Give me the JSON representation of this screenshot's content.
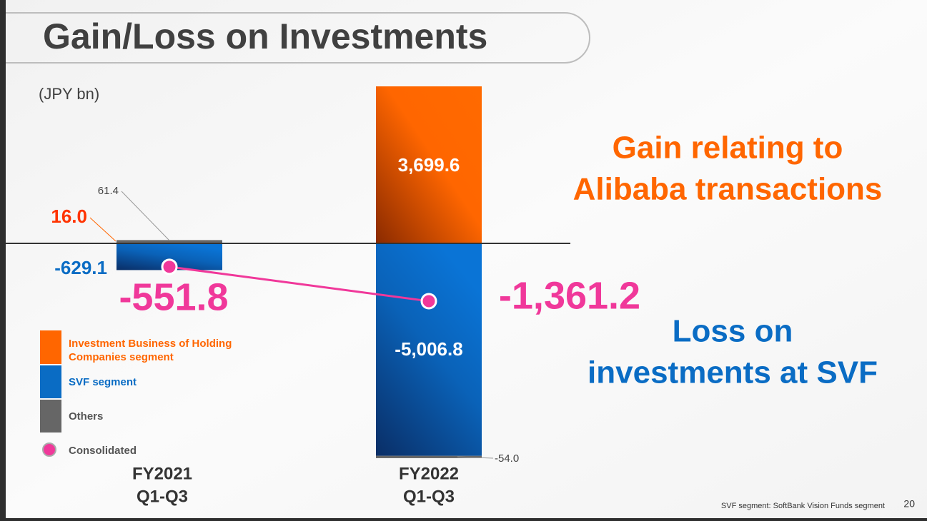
{
  "title": "Gain/Loss on Investments",
  "footnote": "SVF segment: SoftBank Vision Funds segment",
  "page_number": "20",
  "chart_data": {
    "type": "bar",
    "stacked": true,
    "unit_label": "(JPY bn)",
    "categories": [
      [
        "FY2021",
        "Q1-Q3"
      ],
      [
        "FY2022",
        "Q1-Q3"
      ]
    ],
    "series": [
      {
        "name": "Investment Business of Holding Companies segment",
        "color": "#ff6600",
        "values": [
          16.0,
          3699.6
        ],
        "value_labels": [
          "16.0",
          "3,699.6"
        ]
      },
      {
        "name": "SVF segment",
        "color": "#0a6cc4",
        "values": [
          -629.1,
          -5006.8
        ],
        "value_labels": [
          "-629.1",
          "-5,006.8"
        ]
      },
      {
        "name": "Others",
        "color": "#666666",
        "values": [
          61.4,
          -54.0
        ],
        "value_labels": [
          "61.4",
          "-54.0"
        ]
      },
      {
        "name": "Consolidated",
        "type": "line",
        "color": "#f0389a",
        "values": [
          -551.8,
          -1361.2
        ],
        "value_labels": [
          "-551.8",
          "-1,361.2"
        ]
      }
    ],
    "annotations": [
      {
        "lines": [
          "Gain relating to",
          "Alibaba transactions"
        ],
        "color": "#ff6600"
      },
      {
        "lines": [
          "Loss on",
          "investments at SVF"
        ],
        "color": "#0a6cc4"
      }
    ]
  }
}
